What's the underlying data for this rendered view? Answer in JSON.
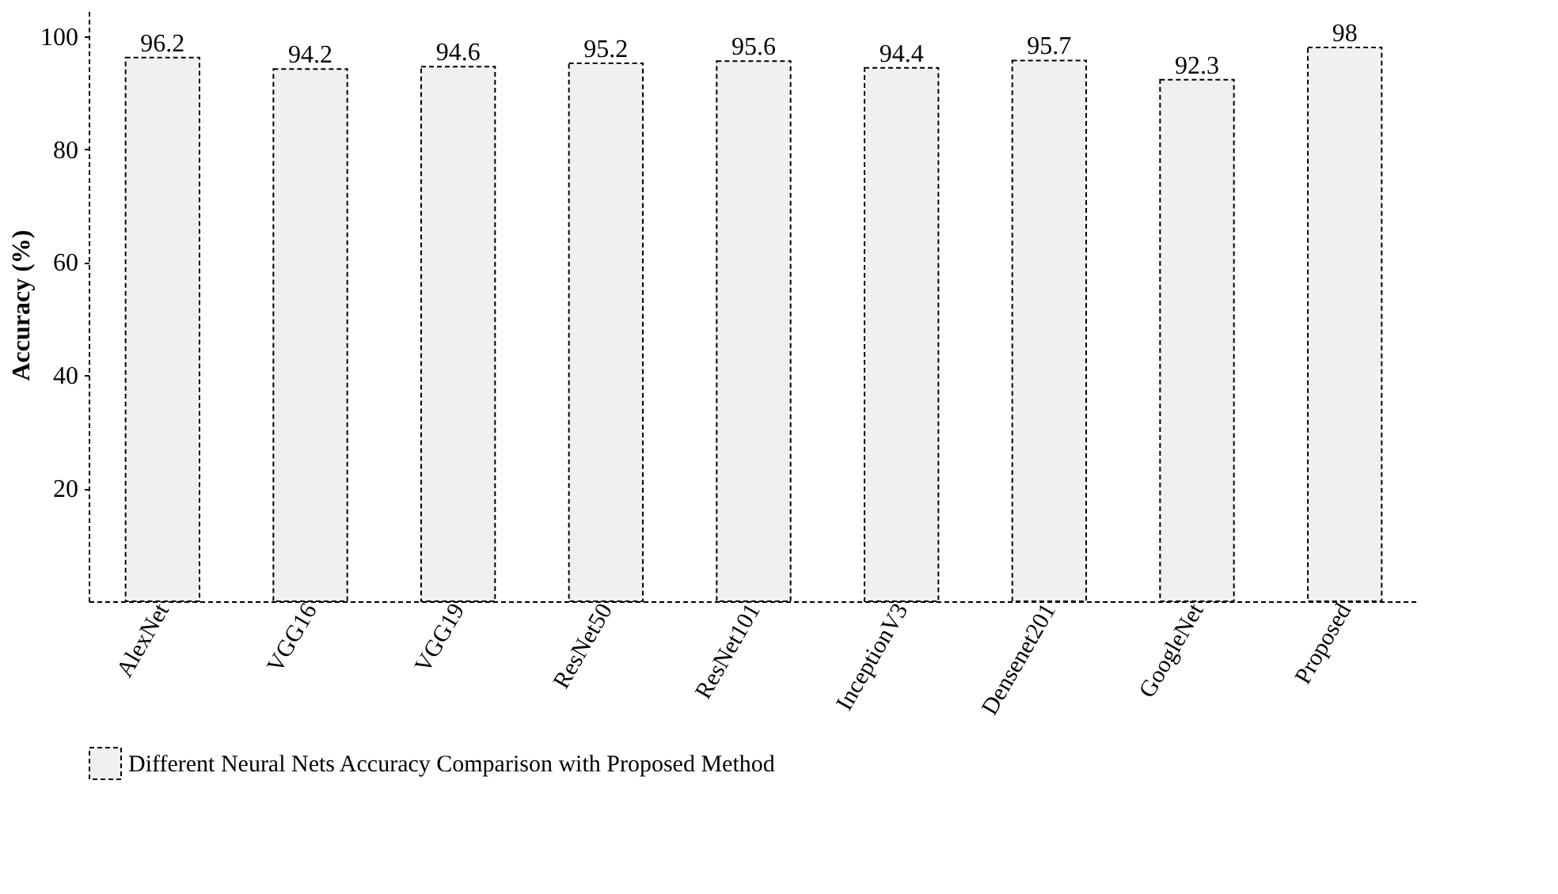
{
  "chart_data": {
    "type": "bar",
    "ylabel": "Accuracy (%)",
    "categories": [
      "AlexNet",
      "VGG16",
      "VGG19",
      "ResNet50",
      "ResNet101",
      "InceptionV3",
      "Densenet201",
      "GoogleNet",
      "Proposed"
    ],
    "series": [
      {
        "name": "Different Neural Nets Accuracy Comparison with Proposed Method",
        "color": "#f0f0f0",
        "values": [
          96.2,
          94.2,
          94.6,
          95.2,
          95.6,
          94.4,
          95.7,
          92.3,
          98
        ]
      }
    ],
    "ylim": [
      0,
      105
    ],
    "yticks": [
      20,
      40,
      60,
      80,
      100
    ],
    "grid": false,
    "legend": "bottom",
    "data_labels": true,
    "line_style": "dashed"
  }
}
